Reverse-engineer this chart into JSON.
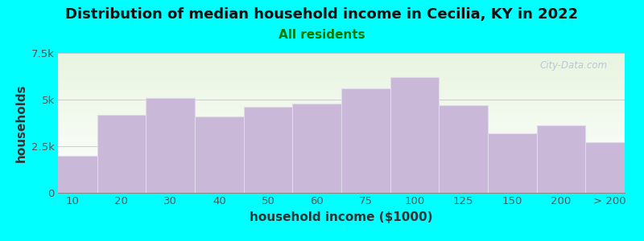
{
  "title": "Distribution of median household income in Cecilia, KY in 2022",
  "subtitle": "All residents",
  "xlabel": "household income ($1000)",
  "ylabel": "households",
  "title_fontsize": 13,
  "subtitle_fontsize": 11,
  "label_fontsize": 11,
  "tick_fontsize": 9.5,
  "background_color": "#00FFFF",
  "plot_bg_top": "#e8f5e0",
  "plot_bg_bottom": "#ffffff",
  "bar_color": "#c9b8d8",
  "bar_edge_color": "#e0d8ec",
  "bar_heights": [
    2000,
    4200,
    5100,
    4100,
    4600,
    4800,
    5600,
    6200,
    4700,
    3200,
    3600,
    2700
  ],
  "bin_lefts": [
    0,
    1,
    2,
    3,
    4,
    5,
    6,
    7,
    8,
    9,
    10,
    11
  ],
  "bin_widths": [
    1,
    1,
    1,
    1,
    1,
    1,
    1,
    1,
    1,
    1,
    1,
    1
  ],
  "xtick_positions": [
    0,
    1,
    2,
    3,
    4,
    5,
    6,
    7,
    8,
    9,
    10,
    11
  ],
  "xtick_labels": [
    "10",
    "20",
    "30",
    "40",
    "50",
    "60",
    "75",
    "100",
    "125",
    "150",
    "200",
    "> 200"
  ],
  "ylim": [
    0,
    7500
  ],
  "yticks": [
    0,
    2500,
    5000,
    7500
  ],
  "ytick_labels": [
    "0",
    "2.5k",
    "5k",
    "7.5k"
  ],
  "watermark": "City-Data.com",
  "subtitle_color": "#007700",
  "title_color": "#111111",
  "tick_color": "#555555",
  "label_color": "#333333"
}
